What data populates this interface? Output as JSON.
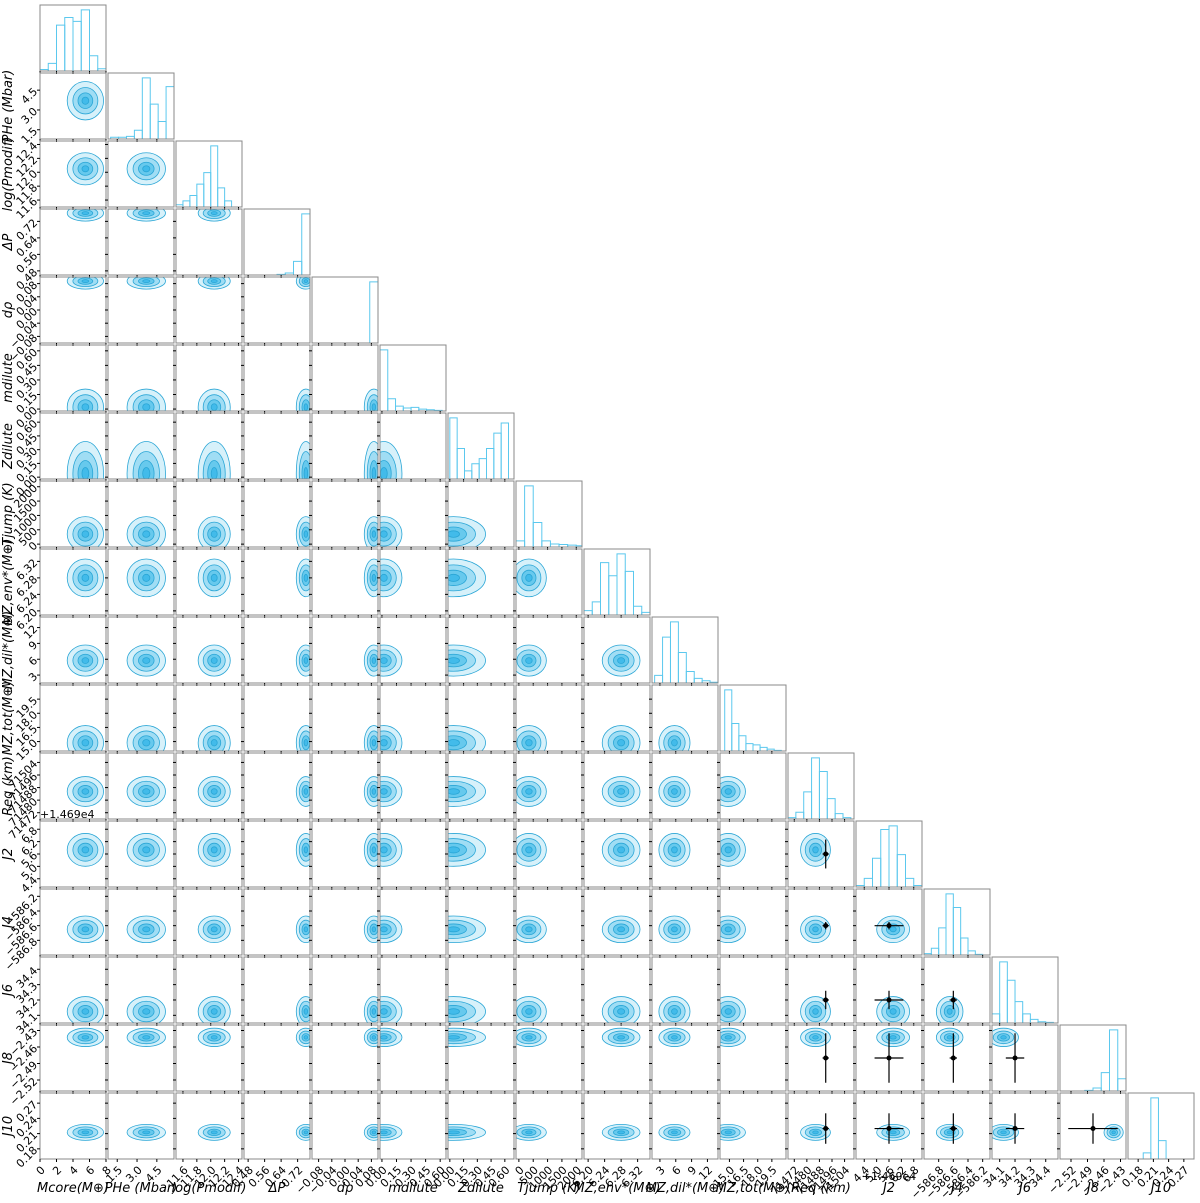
{
  "chart_data": {
    "type": "corner",
    "parameters": [
      {
        "label": "Mcore(M⊕)",
        "lim": [
          0,
          8
        ],
        "ticks": [
          0,
          2,
          4,
          6,
          8
        ],
        "bins": [
          0,
          1,
          2,
          3,
          4,
          5,
          6,
          7,
          8
        ],
        "hist": [
          2,
          10,
          60,
          70,
          65,
          80,
          20,
          3
        ]
      },
      {
        "label": "PHe (Mbar)",
        "lim": [
          0.8,
          5.8
        ],
        "ticks": [
          1.5,
          {
            "value": 3,
            "label": "3.0"
          },
          4.5
        ],
        "bins": [
          1.0,
          1.6,
          2.2,
          2.8,
          3.4,
          4.0,
          4.6,
          5.2,
          5.8
        ],
        "hist": [
          2,
          2,
          3,
          10,
          70,
          40,
          20,
          60
        ]
      },
      {
        "label": "log(Pmodif)",
        "lim": [
          11.5,
          12.45
        ],
        "ticks": [
          11.6,
          11.8,
          {
            "value": 12,
            "label": "12.0"
          },
          12.2,
          12.4
        ],
        "bins": [
          11.5,
          11.6,
          11.7,
          11.8,
          11.9,
          12.0,
          12.1,
          12.2,
          12.3
        ],
        "hist": [
          3,
          8,
          15,
          30,
          45,
          80,
          25,
          8
        ]
      },
      {
        "label": "ΔP",
        "lim": [
          0.46,
          0.78
        ],
        "ticks": [
          0.48,
          0.56,
          0.64,
          0.72
        ],
        "bins": [
          0.46,
          0.5,
          0.54,
          0.58,
          0.62,
          0.66,
          0.7,
          0.74,
          0.78
        ],
        "hist": [
          0,
          0,
          0,
          0,
          1,
          3,
          20,
          90
        ]
      },
      {
        "label": "dρ",
        "lim": [
          -0.1,
          0.1
        ],
        "ticks": [
          {
            "value": -0.08,
            "label": "−0.08"
          },
          {
            "value": -0.04,
            "label": "−0.04"
          },
          {
            "value": 0,
            "label": "0.00"
          },
          0.04,
          0.08
        ],
        "bins": [
          -0.1,
          -0.075,
          -0.05,
          -0.025,
          0,
          0.025,
          0.05,
          0.075,
          0.1
        ],
        "hist": [
          0,
          0,
          0,
          0,
          0,
          0,
          0,
          100
        ]
      },
      {
        "label": "mdilute",
        "lim": [
          -0.02,
          0.66
        ],
        "ticks": [
          {
            "value": 0,
            "label": "0.00"
          },
          0.15,
          {
            "value": 0.3,
            "label": "0.30"
          },
          0.45,
          {
            "value": 0.6,
            "label": "0.60"
          }
        ],
        "bins": [
          -0.02,
          0.06,
          0.14,
          0.22,
          0.3,
          0.38,
          0.46,
          0.54,
          0.62
        ],
        "hist": [
          100,
          20,
          8,
          5,
          6,
          3,
          2,
          1
        ]
      },
      {
        "label": "Zdilute",
        "lim": [
          -0.02,
          0.7
        ],
        "ticks": [
          {
            "value": 0,
            "label": "0.00"
          },
          0.15,
          {
            "value": 0.3,
            "label": "0.30"
          },
          0.45,
          {
            "value": 0.6,
            "label": "0.60"
          }
        ],
        "bins": [
          0,
          0.08,
          0.16,
          0.24,
          0.32,
          0.4,
          0.48,
          0.56,
          0.64
        ],
        "hist": [
          60,
          30,
          8,
          15,
          20,
          30,
          45,
          55
        ]
      },
      {
        "label": "Tjump (K)",
        "lim": [
          -100,
          2200
        ],
        "ticks": [
          0,
          500,
          1000,
          1500,
          2000
        ],
        "bins": [
          -100,
          200,
          500,
          800,
          1100,
          1400,
          1700,
          2000,
          2300
        ],
        "hist": [
          10,
          100,
          40,
          10,
          5,
          4,
          3,
          2
        ]
      },
      {
        "label": "MZ,env*(M⊕)",
        "lim": [
          6.19,
          6.35
        ],
        "ticks": [
          {
            "value": 6.2,
            "label": "6.20"
          },
          6.24,
          6.28,
          6.32
        ],
        "bins": [
          6.19,
          6.21,
          6.23,
          6.25,
          6.27,
          6.29,
          6.31,
          6.33,
          6.35
        ],
        "hist": [
          5,
          15,
          60,
          45,
          70,
          50,
          10,
          3
        ]
      },
      {
        "label": "MZ,dil*(M⊕)",
        "lim": [
          1.5,
          14
        ],
        "ticks": [
          3,
          6,
          9,
          12
        ],
        "bins": [
          2,
          3.5,
          5,
          6.5,
          8,
          9.5,
          11,
          12.5,
          14
        ],
        "hist": [
          10,
          60,
          80,
          40,
          15,
          6,
          3,
          1
        ]
      },
      {
        "label": "MZ,tot(M⊕)",
        "lim": [
          14,
          21
        ],
        "ticks": [
          {
            "value": 15,
            "label": "15.0"
          },
          16.5,
          {
            "value": 18,
            "label": "18.0"
          },
          19.5
        ],
        "bins": [
          14.5,
          15.25,
          16,
          16.75,
          17.5,
          18.25,
          19,
          19.75,
          20.5
        ],
        "hist": [
          100,
          45,
          25,
          12,
          10,
          6,
          3,
          1
        ]
      },
      {
        "label": "Req (km)",
        "lim": [
          71468,
          71510
        ],
        "ticks": [
          71472,
          71480,
          71488,
          71496,
          71504
        ],
        "bins": [
          71468,
          71473,
          71478,
          71483,
          71488,
          71493,
          71498,
          71503,
          71508
        ],
        "hist": [
          2,
          10,
          40,
          90,
          70,
          30,
          8,
          2
        ],
        "reference": {
          "value": 71492,
          "err": 2
        }
      },
      {
        "label": "J2",
        "offset": "+1.469e4",
        "lim": [
          4.0,
          7.2
        ],
        "ticks": [
          4.4,
          {
            "value": 5,
            "label": "5.0"
          },
          5.6,
          6.2,
          6.8
        ],
        "bins": [
          4.0,
          4.4,
          4.8,
          5.2,
          5.6,
          6.0,
          6.4,
          6.8,
          7.2
        ],
        "hist": [
          2,
          12,
          40,
          80,
          85,
          45,
          12,
          2
        ],
        "reference": {
          "value": 5.6,
          "err": 0.7
        }
      },
      {
        "label": "J4",
        "lim": [
          -587.0,
          -586.1
        ],
        "ticks": [
          {
            "value": -586.8,
            "label": "−586.8"
          },
          {
            "value": -586.6,
            "label": "−586.6"
          },
          {
            "value": -586.4,
            "label": "−586.4"
          },
          {
            "value": -586.2,
            "label": "−586.2"
          }
        ],
        "bins": [
          -587.0,
          -586.9,
          -586.8,
          -586.7,
          -586.6,
          -586.5,
          -586.4,
          -586.3,
          -586.2
        ],
        "hist": [
          2,
          10,
          40,
          90,
          70,
          25,
          6,
          1
        ],
        "reference": {
          "value": -586.6,
          "err": 0.05
        }
      },
      {
        "label": "J6",
        "lim": [
          34.05,
          34.48
        ],
        "ticks": [
          34.1,
          34.2,
          34.3,
          34.4
        ],
        "bins": [
          34.05,
          34.1,
          34.15,
          34.2,
          34.25,
          34.3,
          34.35,
          34.4,
          34.45
        ],
        "hist": [
          15,
          100,
          70,
          35,
          15,
          6,
          2,
          1
        ],
        "reference": {
          "value": 34.2,
          "err": 0.06
        }
      },
      {
        "label": "J8",
        "lim": [
          -2.54,
          -2.42
        ],
        "ticks": [
          {
            "value": -2.52,
            "label": "−2.52"
          },
          {
            "value": -2.49,
            "label": "−2.49"
          },
          {
            "value": -2.46,
            "label": "−2.46"
          },
          {
            "value": -2.43,
            "label": "−2.43"
          }
        ],
        "bins": [
          -2.54,
          -2.525,
          -2.51,
          -2.495,
          -2.48,
          -2.465,
          -2.45,
          -2.435,
          -2.42
        ],
        "hist": [
          0,
          0,
          0,
          1,
          5,
          30,
          100,
          20
        ],
        "reference": {
          "value": -2.48,
          "err": 0.045
        }
      },
      {
        "label": "J10",
        "lim": [
          0.16,
          0.29
        ],
        "ticks": [
          0.18,
          0.21,
          0.24,
          0.27
        ],
        "bins": [
          0.16,
          0.175,
          0.19,
          0.205,
          0.22,
          0.235,
          0.25,
          0.265,
          0.28
        ],
        "hist": [
          0,
          0,
          10,
          100,
          30,
          0,
          0,
          0
        ],
        "reference": {
          "value": 0.22,
          "err": 0.03
        }
      }
    ]
  }
}
